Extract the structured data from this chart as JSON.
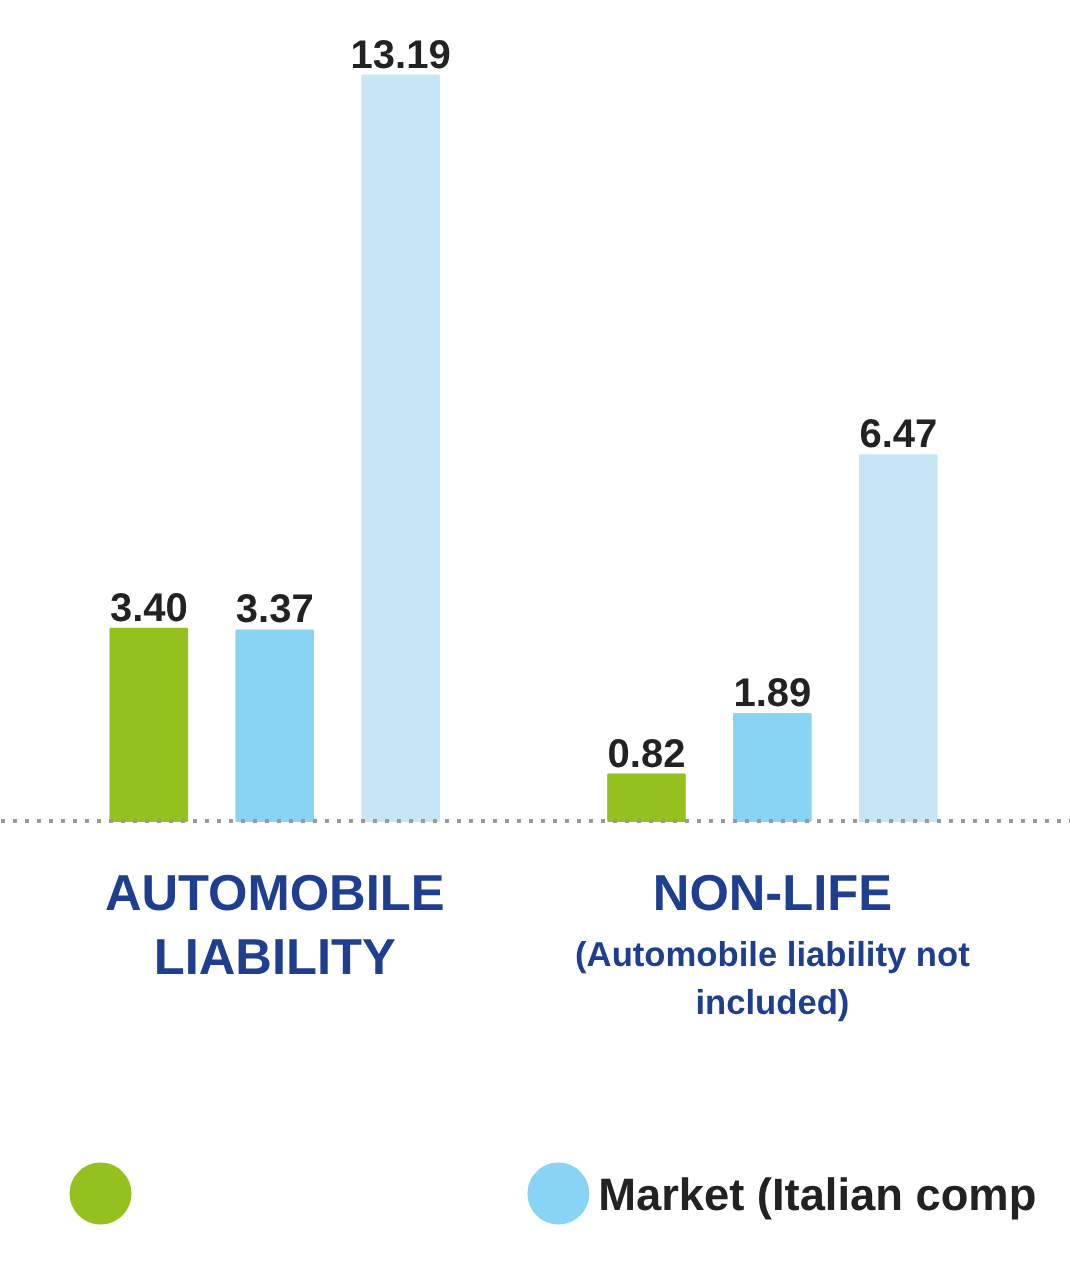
{
  "chart_data": {
    "type": "bar",
    "categories": [
      "AUTOMOBILE LIABILITY",
      "NON-LIFE"
    ],
    "annotations": [
      "(Automobile liability not included)"
    ],
    "series": [
      {
        "color": "#95c11f",
        "values": [
          3.4,
          0.82
        ],
        "value_labels": [
          "3.40",
          "0.82"
        ]
      },
      {
        "name": "Market (Italian comp",
        "color": "#89d4f5",
        "values": [
          3.37,
          1.89
        ],
        "value_labels": [
          "3.37",
          "1.89"
        ]
      },
      {
        "color": "#c6e6f8",
        "values": [
          13.19,
          6.47
        ],
        "value_labels": [
          "13.19",
          "6.47"
        ]
      }
    ],
    "legend": "bottom"
  }
}
